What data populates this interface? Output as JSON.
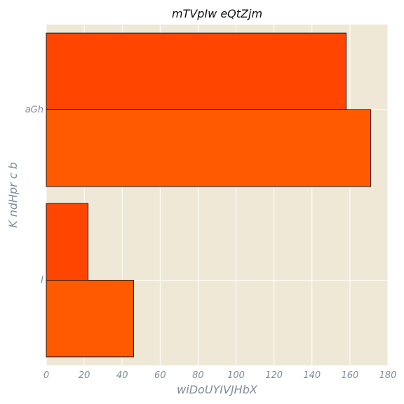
{
  "chart_data": {
    "type": "bar",
    "orientation": "horizontal",
    "title": "mTVpIw eQtZjm",
    "xlabel": "wiDoUYIVJHbX",
    "ylabel": "K ndHpr c b",
    "categories": [
      "aGh",
      "I"
    ],
    "series": [
      {
        "color": "#ff4500",
        "values": [
          158,
          22
        ]
      },
      {
        "color": "#ff5a00",
        "values": [
          171,
          46
        ]
      }
    ],
    "xlim": [
      0,
      180
    ],
    "xticks": [
      0,
      20,
      40,
      60,
      80,
      100,
      120,
      140,
      160,
      180
    ],
    "grid": true,
    "background": "#efe8d6"
  }
}
